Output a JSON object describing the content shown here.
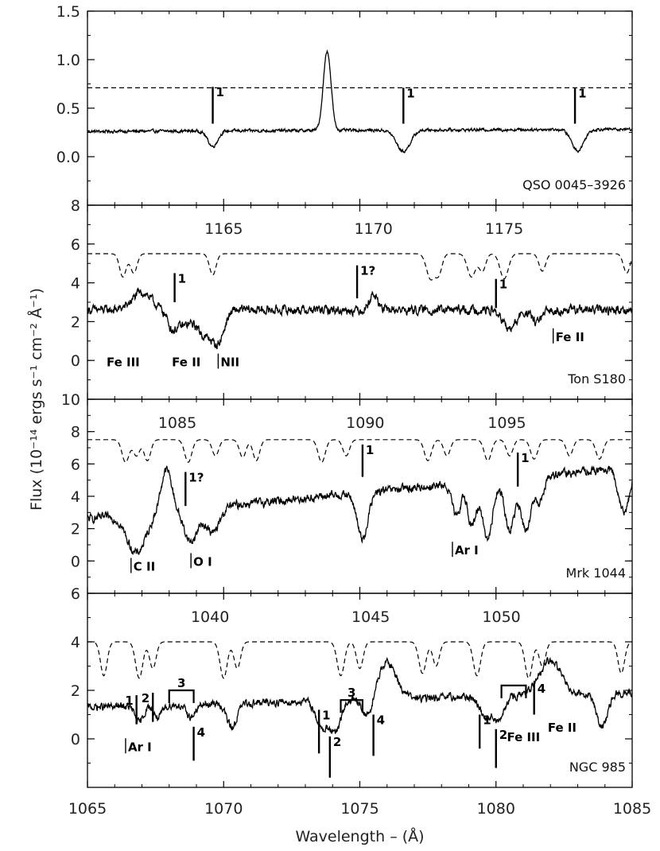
{
  "chart_data": {
    "type": "line",
    "x_axis": {
      "label": "Wavelength  –  (Å)",
      "range": [
        1065,
        1085
      ],
      "ticks": [
        1065,
        1070,
        1075,
        1080,
        1085
      ]
    },
    "y_axis": {
      "label": "Flux (10⁻¹⁴ ergs s⁻¹ cm⁻² Å⁻¹)"
    },
    "panels": [
      {
        "object": "QSO 0045–3926",
        "ylim": [
          -0.5,
          1.5
        ],
        "yticks": [
          0.0,
          0.5,
          1.0,
          1.5
        ],
        "top_ticks": [],
        "template": {
          "type": "constant",
          "value": 0.71
        },
        "continuum": 0.26,
        "continuum_slope": 0.0012,
        "absorptions": [
          {
            "center": 1069.6,
            "depth": 0.16,
            "width": 0.18
          },
          {
            "center": 1076.6,
            "depth": 0.22,
            "width": 0.25
          },
          {
            "center": 1083.0,
            "depth": 0.22,
            "width": 0.22
          }
        ],
        "emissions": [
          {
            "center": 1073.8,
            "height": 0.82,
            "width": 0.14
          }
        ],
        "noise": 0.012,
        "annotations": [
          {
            "text": "1",
            "x": 1069.6,
            "y_top": 0.72,
            "y_bottom": 0.34,
            "side": "right"
          },
          {
            "text": "1",
            "x": 1076.6,
            "y_top": 0.71,
            "y_bottom": 0.34,
            "side": "right"
          },
          {
            "text": "1",
            "x": 1082.9,
            "y_top": 0.71,
            "y_bottom": 0.34,
            "side": "right"
          }
        ],
        "labels": []
      },
      {
        "object": "Ton S180",
        "ylim": [
          -2,
          8
        ],
        "yticks": [
          0,
          2,
          4,
          6,
          8
        ],
        "top_ticks": [
          {
            "text": "1165",
            "x": 1070.0
          },
          {
            "text": "1170",
            "x": 1075.5
          },
          {
            "text": "1175",
            "x": 1080.3
          }
        ],
        "template": {
          "type": "absorption",
          "level": 5.5,
          "dashed": true,
          "lines": [
            {
              "center": 1066.3,
              "depth": 1.2,
              "width": 0.12
            },
            {
              "center": 1066.7,
              "depth": 1.0,
              "width": 0.12
            },
            {
              "center": 1069.6,
              "depth": 1.1,
              "width": 0.12
            },
            {
              "center": 1077.6,
              "depth": 1.3,
              "width": 0.15
            },
            {
              "center": 1077.9,
              "depth": 1.0,
              "width": 0.12
            },
            {
              "center": 1079.1,
              "depth": 1.2,
              "width": 0.15
            },
            {
              "center": 1079.5,
              "depth": 0.9,
              "width": 0.12
            },
            {
              "center": 1080.3,
              "depth": 1.3,
              "width": 0.15
            },
            {
              "center": 1081.7,
              "depth": 0.9,
              "width": 0.12
            },
            {
              "center": 1084.8,
              "depth": 1.0,
              "width": 0.12
            }
          ]
        },
        "continuum": 2.6,
        "continuum_slope": 0.0,
        "absorptions": [
          {
            "center": 1068.5,
            "depth": 0.8,
            "width": 0.35
          },
          {
            "center": 1068.1,
            "depth": 0.6,
            "width": 0.15
          },
          {
            "center": 1069.3,
            "depth": 1.2,
            "width": 0.25
          },
          {
            "center": 1069.8,
            "depth": 1.6,
            "width": 0.22
          },
          {
            "center": 1080.5,
            "depth": 1.0,
            "width": 0.25
          },
          {
            "center": 1081.5,
            "depth": 0.6,
            "width": 0.2
          }
        ],
        "emissions": [
          {
            "center": 1067.0,
            "height": 0.9,
            "width": 0.35
          },
          {
            "center": 1075.5,
            "height": 0.8,
            "width": 0.15
          }
        ],
        "noise": 0.18,
        "annotations": [
          {
            "text": "1",
            "x": 1068.2,
            "y_top": 4.5,
            "y_bottom": 3.0,
            "side": "right"
          },
          {
            "text": "1?",
            "x": 1074.9,
            "y_top": 4.9,
            "y_bottom": 3.2,
            "side": "right"
          },
          {
            "text": "1",
            "x": 1080.0,
            "y_top": 4.2,
            "y_bottom": 2.7,
            "side": "right"
          }
        ],
        "labels": [
          {
            "text": "Fe III",
            "x": 1065.7,
            "y": -0.3
          },
          {
            "text": "Fe II",
            "x": 1068.1,
            "y": -0.3
          },
          {
            "text": "NII",
            "x": 1069.8,
            "y": -0.3,
            "bar": true
          },
          {
            "text": "Fe II",
            "x": 1082.1,
            "y": 1.0,
            "bar": true
          }
        ]
      },
      {
        "object": "Mrk 1044",
        "ylim": [
          -2,
          10
        ],
        "yticks": [
          0,
          2,
          4,
          6,
          8,
          10
        ],
        "top_ticks": [
          {
            "text": "1085",
            "x": 1068.3
          },
          {
            "text": "1090",
            "x": 1075.2
          },
          {
            "text": "1095",
            "x": 1080.4
          }
        ],
        "template": {
          "type": "absorption",
          "level": 7.5,
          "dashed": true,
          "lines": [
            {
              "center": 1066.4,
              "depth": 1.4,
              "width": 0.13
            },
            {
              "center": 1066.8,
              "depth": 1.0,
              "width": 0.12
            },
            {
              "center": 1067.2,
              "depth": 1.3,
              "width": 0.12
            },
            {
              "center": 1068.7,
              "depth": 1.4,
              "width": 0.13
            },
            {
              "center": 1069.7,
              "depth": 1.0,
              "width": 0.12
            },
            {
              "center": 1070.7,
              "depth": 1.1,
              "width": 0.12
            },
            {
              "center": 1071.2,
              "depth": 1.3,
              "width": 0.12
            },
            {
              "center": 1073.6,
              "depth": 1.4,
              "width": 0.13
            },
            {
              "center": 1074.5,
              "depth": 1.0,
              "width": 0.12
            },
            {
              "center": 1077.5,
              "depth": 1.3,
              "width": 0.13
            },
            {
              "center": 1078.2,
              "depth": 1.0,
              "width": 0.12
            },
            {
              "center": 1079.7,
              "depth": 1.3,
              "width": 0.13
            },
            {
              "center": 1080.5,
              "depth": 1.0,
              "width": 0.12
            },
            {
              "center": 1081.4,
              "depth": 1.2,
              "width": 0.13
            },
            {
              "center": 1082.7,
              "depth": 1.0,
              "width": 0.12
            },
            {
              "center": 1083.8,
              "depth": 1.2,
              "width": 0.13
            }
          ]
        },
        "continuum": 2.6,
        "continuum_slope": 0.16,
        "absorptions": [
          {
            "center": 1066.8,
            "depth": 2.4,
            "width": 0.35
          },
          {
            "center": 1068.8,
            "depth": 2.0,
            "width": 0.25
          },
          {
            "center": 1069.6,
            "depth": 1.6,
            "width": 0.25
          },
          {
            "center": 1075.1,
            "depth": 2.8,
            "width": 0.2
          },
          {
            "center": 1078.6,
            "depth": 2.4,
            "width": 0.18
          },
          {
            "center": 1079.1,
            "depth": 2.8,
            "width": 0.18
          },
          {
            "center": 1079.7,
            "depth": 3.6,
            "width": 0.18
          },
          {
            "center": 1080.5,
            "depth": 3.2,
            "width": 0.18
          },
          {
            "center": 1081.1,
            "depth": 3.4,
            "width": 0.18
          },
          {
            "center": 1081.6,
            "depth": 1.6,
            "width": 0.15
          },
          {
            "center": 1084.7,
            "depth": 2.8,
            "width": 0.2
          }
        ],
        "emissions": [
          {
            "center": 1067.9,
            "height": 2.6,
            "width": 0.2
          },
          {
            "center": 1078.8,
            "height": 1.2,
            "width": 0.15
          }
        ],
        "noise": 0.2,
        "annotations": [
          {
            "text": "1?",
            "x": 1068.6,
            "y_top": 5.5,
            "y_bottom": 3.4,
            "side": "right"
          },
          {
            "text": "1",
            "x": 1075.1,
            "y_top": 7.2,
            "y_bottom": 5.2,
            "side": "right"
          },
          {
            "text": "1",
            "x": 1080.8,
            "y_top": 6.7,
            "y_bottom": 4.6,
            "side": "right"
          }
        ],
        "labels": [
          {
            "text": "C II",
            "x": 1066.6,
            "y": -0.6,
            "bar": true
          },
          {
            "text": "O I",
            "x": 1068.8,
            "y": -0.3,
            "bar": true
          },
          {
            "text": "Ar I",
            "x": 1078.4,
            "y": 0.4,
            "bar": true
          }
        ]
      },
      {
        "object": "NGC 985",
        "ylim": [
          -2,
          6
        ],
        "yticks": [
          0,
          2,
          4,
          6
        ],
        "top_ticks": [
          {
            "text": "1040",
            "x": 1069.5
          },
          {
            "text": "1045",
            "x": 1075.4
          },
          {
            "text": "1050",
            "x": 1080.2
          }
        ],
        "template": {
          "type": "absorption",
          "level": 4.0,
          "dashed": true,
          "lines": [
            {
              "center": 1065.6,
              "depth": 1.4,
              "width": 0.12
            },
            {
              "center": 1066.9,
              "depth": 1.5,
              "width": 0.13
            },
            {
              "center": 1067.4,
              "depth": 1.1,
              "width": 0.12
            },
            {
              "center": 1070.0,
              "depth": 1.5,
              "width": 0.13
            },
            {
              "center": 1070.5,
              "depth": 1.1,
              "width": 0.12
            },
            {
              "center": 1074.3,
              "depth": 1.4,
              "width": 0.13
            },
            {
              "center": 1075.0,
              "depth": 1.1,
              "width": 0.12
            },
            {
              "center": 1077.3,
              "depth": 1.3,
              "width": 0.13
            },
            {
              "center": 1077.8,
              "depth": 1.0,
              "width": 0.12
            },
            {
              "center": 1079.3,
              "depth": 1.4,
              "width": 0.13
            },
            {
              "center": 1081.2,
              "depth": 1.5,
              "width": 0.13
            },
            {
              "center": 1081.7,
              "depth": 1.0,
              "width": 0.12
            },
            {
              "center": 1084.6,
              "depth": 1.3,
              "width": 0.12
            }
          ]
        },
        "continuum": 1.3,
        "continuum_slope": 0.03,
        "absorptions": [
          {
            "center": 1066.9,
            "depth": 0.7,
            "width": 0.15
          },
          {
            "center": 1067.6,
            "depth": 0.5,
            "width": 0.15
          },
          {
            "center": 1068.8,
            "depth": 0.5,
            "width": 0.18
          },
          {
            "center": 1070.3,
            "depth": 1.0,
            "width": 0.18
          },
          {
            "center": 1073.6,
            "depth": 1.1,
            "width": 0.2
          },
          {
            "center": 1074.1,
            "depth": 1.3,
            "width": 0.2
          },
          {
            "center": 1075.3,
            "depth": 0.8,
            "width": 0.2
          },
          {
            "center": 1079.6,
            "depth": 0.8,
            "width": 0.2
          },
          {
            "center": 1080.1,
            "depth": 1.0,
            "width": 0.2
          },
          {
            "center": 1083.9,
            "depth": 1.4,
            "width": 0.2
          }
        ],
        "emissions": [
          {
            "center": 1076.0,
            "height": 1.5,
            "width": 0.35
          },
          {
            "center": 1082.0,
            "height": 1.4,
            "width": 0.4
          }
        ],
        "noise": 0.12,
        "annotations": [
          {
            "text": "1",
            "x": 1066.8,
            "y_top": 1.8,
            "y_bottom": 0.6,
            "side": "left"
          },
          {
            "text": "2",
            "x": 1067.4,
            "y_top": 1.9,
            "y_bottom": 0.7,
            "side": "left"
          },
          {
            "text": "4",
            "x": 1068.9,
            "y_top": 0.5,
            "y_bottom": -0.9,
            "side": "right"
          },
          {
            "text": "1",
            "x": 1073.5,
            "y_top": 1.2,
            "y_bottom": -0.6,
            "side": "right"
          },
          {
            "text": "2",
            "x": 1073.9,
            "y_top": 0.1,
            "y_bottom": -1.6,
            "side": "right"
          },
          {
            "text": "4",
            "x": 1075.5,
            "y_top": 1.0,
            "y_bottom": -0.7,
            "side": "right"
          },
          {
            "text": "1",
            "x": 1079.4,
            "y_top": 1.0,
            "y_bottom": -0.4,
            "side": "right"
          },
          {
            "text": "2",
            "x": 1080.0,
            "y_top": 0.4,
            "y_bottom": -1.2,
            "side": "right"
          },
          {
            "text": "4",
            "x": 1081.4,
            "y_top": 2.3,
            "y_bottom": 1.0,
            "side": "right"
          }
        ],
        "brackets": [
          {
            "text": "3",
            "x1": 1068.0,
            "x2": 1068.9,
            "y": 2.0
          },
          {
            "text": "3",
            "x1": 1074.3,
            "x2": 1075.1,
            "y": 1.6
          },
          {
            "text": "",
            "x1": 1080.2,
            "x2": 1081.1,
            "y": 2.2
          }
        ],
        "labels": [
          {
            "text": "Ar I",
            "x": 1066.4,
            "y": -0.5,
            "bar": true
          },
          {
            "text": "Fe III",
            "x": 1080.4,
            "y": -0.1
          },
          {
            "text": "Fe II",
            "x": 1081.9,
            "y": 0.3
          }
        ]
      }
    ]
  }
}
